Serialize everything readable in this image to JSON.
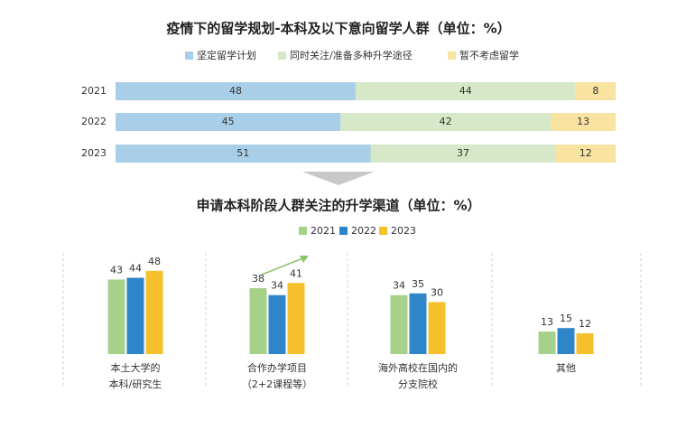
{
  "chart_data": [
    {
      "type": "stacked-hbar",
      "title": "疫情下的留学规划-本科及以下意向留学人群（单位：%）",
      "categories": [
        "2021",
        "2022",
        "2023"
      ],
      "series": [
        {
          "name": "坚定留学计划",
          "color": "#a9cfe8",
          "values": [
            48,
            45,
            51
          ]
        },
        {
          "name": "同时关注/准备多种升学途径",
          "color": "#d6e8c8",
          "values": [
            44,
            42,
            37
          ]
        },
        {
          "name": "暂不考虑留学",
          "color": "#f9e3a0",
          "values": [
            8,
            13,
            12
          ]
        }
      ]
    },
    {
      "type": "grouped-bar",
      "title": "申请本科阶段人群关注的升学渠道（单位：%）",
      "categories": [
        [
          "本土大学的",
          "本科/研究生"
        ],
        [
          "合作办学项目",
          "（2+2课程等）"
        ],
        [
          "海外高校在国内的",
          "分支院校"
        ],
        [
          "其他"
        ]
      ],
      "series": [
        {
          "name": "2021",
          "color": "#a6d18a",
          "values": [
            43,
            38,
            34,
            13
          ]
        },
        {
          "name": "2022",
          "color": "#2e86c8",
          "values": [
            44,
            34,
            35,
            15
          ]
        },
        {
          "name": "2023",
          "color": "#f5c02c",
          "values": [
            48,
            41,
            30,
            12
          ]
        }
      ]
    }
  ]
}
